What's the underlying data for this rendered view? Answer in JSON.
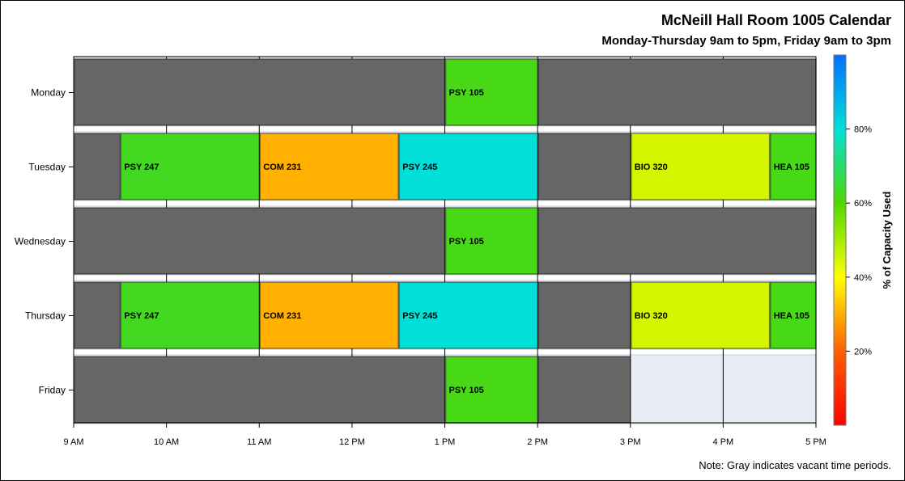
{
  "title": "McNeill Hall Room 1005 Calendar",
  "subtitle": "Monday-Thursday 9am to 5pm, Friday 9am to 3pm",
  "footnote": "Note: Gray indicates vacant time periods.",
  "colors": {
    "vacant": "#666666",
    "unavailable": "#e8ecf5",
    "grid": "#000000",
    "colorbar": [
      "#ff0000",
      "#ff6000",
      "#ffff00",
      "#4fd800",
      "#00e0d8",
      "#0070ff"
    ]
  },
  "chart_data": {
    "type": "timeline",
    "title": "McNeill Hall Room 1005 Calendar",
    "subtitle": "Monday-Thursday 9am to 5pm, Friday 9am to 3pm",
    "x_range": [
      9,
      17
    ],
    "x_ticks": [
      {
        "value": 9,
        "label": "9 AM"
      },
      {
        "value": 10,
        "label": "10 AM"
      },
      {
        "value": 11,
        "label": "11 AM"
      },
      {
        "value": 12,
        "label": "12 PM"
      },
      {
        "value": 13,
        "label": "1 PM"
      },
      {
        "value": 14,
        "label": "2 PM"
      },
      {
        "value": 15,
        "label": "3 PM"
      },
      {
        "value": 16,
        "label": "4 PM"
      },
      {
        "value": 17,
        "label": "5 PM"
      }
    ],
    "days": [
      {
        "day": "Monday",
        "segments": [
          {
            "start": 9,
            "end": 13,
            "label": "",
            "capacity": null
          },
          {
            "start": 13,
            "end": 14,
            "label": "PSY 105",
            "capacity": 62
          },
          {
            "start": 14,
            "end": 17,
            "label": "",
            "capacity": null
          }
        ]
      },
      {
        "day": "Tuesday",
        "segments": [
          {
            "start": 9,
            "end": 9.5,
            "label": "",
            "capacity": null
          },
          {
            "start": 9.5,
            "end": 11,
            "label": "PSY 247",
            "capacity": 63
          },
          {
            "start": 11,
            "end": 12.5,
            "label": "COM 231",
            "capacity": 30
          },
          {
            "start": 12.5,
            "end": 14,
            "label": "PSY 245",
            "capacity": 80
          },
          {
            "start": 14,
            "end": 15,
            "label": "",
            "capacity": null
          },
          {
            "start": 15,
            "end": 16.5,
            "label": "BIO 320",
            "capacity": 45
          },
          {
            "start": 16.5,
            "end": 17,
            "label": "HEA 105",
            "capacity": 62
          }
        ]
      },
      {
        "day": "Wednesday",
        "segments": [
          {
            "start": 9,
            "end": 13,
            "label": "",
            "capacity": null
          },
          {
            "start": 13,
            "end": 14,
            "label": "PSY 105",
            "capacity": 62
          },
          {
            "start": 14,
            "end": 17,
            "label": "",
            "capacity": null
          }
        ]
      },
      {
        "day": "Thursday",
        "segments": [
          {
            "start": 9,
            "end": 9.5,
            "label": "",
            "capacity": null
          },
          {
            "start": 9.5,
            "end": 11,
            "label": "PSY 247",
            "capacity": 63
          },
          {
            "start": 11,
            "end": 12.5,
            "label": "COM 231",
            "capacity": 30
          },
          {
            "start": 12.5,
            "end": 14,
            "label": "PSY 245",
            "capacity": 80
          },
          {
            "start": 14,
            "end": 15,
            "label": "",
            "capacity": null
          },
          {
            "start": 15,
            "end": 16.5,
            "label": "BIO 320",
            "capacity": 45
          },
          {
            "start": 16.5,
            "end": 17,
            "label": "HEA 105",
            "capacity": 62
          }
        ]
      },
      {
        "day": "Friday",
        "segments": [
          {
            "start": 9,
            "end": 13,
            "label": "",
            "capacity": null
          },
          {
            "start": 13,
            "end": 14,
            "label": "PSY 105",
            "capacity": 62
          },
          {
            "start": 14,
            "end": 15,
            "label": "",
            "capacity": null
          }
        ]
      }
    ],
    "colorbar": {
      "label": "% of Capacity Used",
      "range": [
        0,
        100
      ],
      "ticks": [
        {
          "value": 20,
          "label": "20%"
        },
        {
          "value": 40,
          "label": "40%"
        },
        {
          "value": 60,
          "label": "60%"
        },
        {
          "value": 80,
          "label": "80%"
        }
      ]
    },
    "legend_position": "right",
    "grid": true
  }
}
